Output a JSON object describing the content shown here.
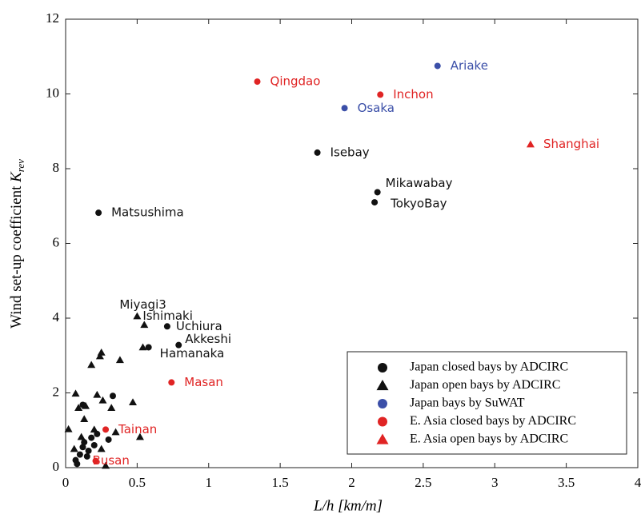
{
  "chart_data": {
    "type": "scatter",
    "x_label": "L/h [km/m]",
    "y_label": "Wind set-up coefficient",
    "y_label_symbol": "K",
    "y_label_subscript": "rev",
    "xlim": [
      0,
      4
    ],
    "xticks": [
      0,
      0.5,
      1,
      1.5,
      2,
      2.5,
      3,
      3.5,
      4
    ],
    "ylim": [
      0,
      12
    ],
    "yticks": [
      0,
      2,
      4,
      6,
      8,
      10,
      12
    ],
    "grid": false,
    "legend": "lower right",
    "series": [
      {
        "name": "Japan closed bays by ADCIRC",
        "color": "#111111",
        "marker": "circle",
        "x": [
          0.23,
          1.76,
          2.18,
          2.16,
          0.71,
          0.79,
          0.58,
          0.33,
          0.12,
          0.07,
          0.1,
          0.12,
          0.13,
          0.16,
          0.18,
          0.2,
          0.3,
          0.08,
          0.15,
          0.22
        ],
        "values": [
          6.82,
          8.43,
          7.37,
          7.1,
          3.78,
          3.28,
          3.22,
          1.92,
          1.68,
          0.2,
          0.35,
          0.55,
          0.68,
          0.45,
          0.8,
          0.6,
          0.75,
          0.1,
          0.3,
          0.9
        ],
        "point_labels": [
          "Matsushima",
          "Isebay",
          "Mikawabay",
          "TokyoBay",
          "Uchiura",
          "Akkeshi",
          "Hamanaka",
          null,
          null,
          null,
          null,
          null,
          null,
          null,
          null,
          null,
          null,
          null,
          null,
          null
        ]
      },
      {
        "name": "Japan open bays by ADCIRC",
        "color": "#111111",
        "marker": "triangle",
        "x": [
          0.5,
          0.55,
          0.54,
          0.25,
          0.24,
          0.38,
          0.18,
          0.07,
          0.22,
          0.47,
          0.14,
          0.26,
          0.32,
          0.09,
          0.13,
          0.02,
          0.2,
          0.35,
          0.52,
          0.11,
          0.06,
          0.28,
          0.25
        ],
        "values": [
          4.05,
          3.82,
          3.22,
          3.08,
          2.98,
          2.88,
          2.75,
          1.98,
          1.95,
          1.75,
          1.65,
          1.8,
          1.6,
          1.6,
          1.3,
          1.03,
          1.02,
          0.95,
          0.82,
          0.82,
          0.5,
          0.05,
          0.5
        ],
        "point_labels": [
          "Miyagi3",
          "Ishimaki",
          null,
          null,
          null,
          null,
          null,
          null,
          null,
          null,
          null,
          null,
          null,
          null,
          null,
          null,
          null,
          null,
          null,
          null,
          null,
          null,
          null
        ]
      },
      {
        "name": "Japan bays by SuWAT",
        "color": "#3b4fa8",
        "marker": "circle",
        "x": [
          2.6,
          1.95
        ],
        "values": [
          10.75,
          9.62
        ],
        "point_labels": [
          "Ariake",
          "Osaka"
        ]
      },
      {
        "name": "E. Asia closed bays by ADCIRC",
        "color": "#e02424",
        "marker": "circle",
        "x": [
          1.34,
          2.2,
          0.74,
          0.28,
          0.21
        ],
        "values": [
          10.33,
          9.98,
          2.28,
          1.02,
          0.18
        ],
        "point_labels": [
          "Qingdao",
          "Inchon",
          "Masan",
          "Tainan",
          "Busan"
        ]
      },
      {
        "name": "E. Asia open bays by ADCIRC",
        "color": "#e02424",
        "marker": "triangle",
        "x": [
          3.25
        ],
        "values": [
          8.65
        ],
        "point_labels": [
          "Shanghai"
        ]
      }
    ]
  }
}
